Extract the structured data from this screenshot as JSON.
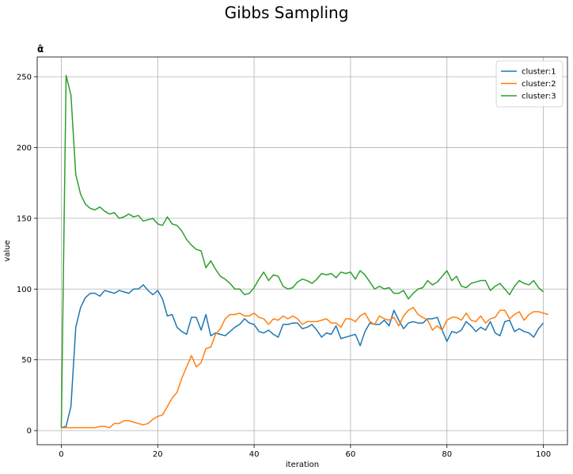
{
  "figure": {
    "suptitle": "Gibbs Sampling"
  },
  "chart_data": {
    "type": "line",
    "title": "α̂",
    "xlabel": "iteration",
    "ylabel": "value",
    "xlim": [
      -5,
      105
    ],
    "ylim": [
      -10,
      264
    ],
    "xticks": [
      0,
      20,
      40,
      60,
      80,
      100
    ],
    "yticks": [
      0,
      50,
      100,
      150,
      200,
      250
    ],
    "grid": true,
    "legend_position": "top-right",
    "series": [
      {
        "name": "cluster:1",
        "color": "#1f77b4",
        "values": [
          2,
          3,
          17,
          73,
          87,
          94,
          97,
          97,
          95,
          99,
          98,
          97,
          99,
          98,
          97,
          100,
          100,
          103,
          99,
          96,
          99,
          93,
          81,
          82,
          73,
          70,
          68,
          80,
          80,
          71,
          82,
          67,
          69,
          68,
          67,
          70,
          73,
          75,
          79,
          76,
          75,
          70,
          69,
          71,
          68,
          66,
          75,
          75,
          76,
          76,
          72,
          73,
          75,
          71,
          66,
          69,
          68,
          74,
          65,
          66,
          67,
          68,
          60,
          70,
          76,
          75,
          75,
          78,
          74,
          85,
          78,
          72,
          76,
          77,
          76,
          76,
          79,
          79,
          80,
          71,
          63,
          70,
          69,
          71,
          77,
          74,
          70,
          73,
          71,
          77,
          69,
          67,
          77,
          78,
          70,
          72,
          70,
          69,
          66,
          72,
          76
        ]
      },
      {
        "name": "cluster:2",
        "color": "#ff7f0e",
        "values": [
          2,
          2,
          2,
          2,
          2,
          2,
          2,
          2,
          3,
          3,
          2,
          5,
          5,
          7,
          7,
          6,
          5,
          4,
          5,
          8,
          10,
          11,
          17,
          23,
          27,
          37,
          45,
          53,
          45,
          48,
          58,
          59,
          68,
          72,
          79,
          82,
          82,
          83,
          81,
          81,
          83,
          80,
          79,
          75,
          79,
          78,
          81,
          79,
          81,
          79,
          75,
          77,
          77,
          77,
          78,
          79,
          76,
          76,
          73,
          79,
          79,
          77,
          81,
          83,
          77,
          75,
          81,
          79,
          78,
          80,
          74,
          81,
          85,
          87,
          82,
          80,
          78,
          71,
          74,
          71,
          78,
          80,
          80,
          78,
          83,
          78,
          77,
          81,
          76,
          79,
          80,
          85,
          85,
          79,
          82,
          84,
          78,
          82,
          84,
          84,
          83,
          82
        ]
      },
      {
        "name": "cluster:3",
        "color": "#2ca02c",
        "values": [
          2,
          251,
          237,
          181,
          167,
          160,
          157,
          156,
          158,
          155,
          153,
          154,
          150,
          151,
          153,
          151,
          152,
          148,
          149,
          150,
          146,
          145,
          151,
          146,
          145,
          141,
          135,
          131,
          128,
          127,
          115,
          120,
          114,
          109,
          107,
          104,
          100,
          100,
          96,
          97,
          101,
          107,
          112,
          106,
          110,
          109,
          102,
          100,
          101,
          105,
          107,
          106,
          104,
          107,
          111,
          110,
          111,
          108,
          112,
          111,
          112,
          107,
          113,
          110,
          105,
          100,
          102,
          100,
          101,
          97,
          97,
          99,
          93,
          97,
          100,
          101,
          106,
          103,
          105,
          109,
          113,
          106,
          109,
          102,
          101,
          104,
          105,
          106,
          106,
          99,
          102,
          104,
          100,
          96,
          102,
          106,
          104,
          103,
          106,
          101,
          98
        ]
      }
    ]
  }
}
